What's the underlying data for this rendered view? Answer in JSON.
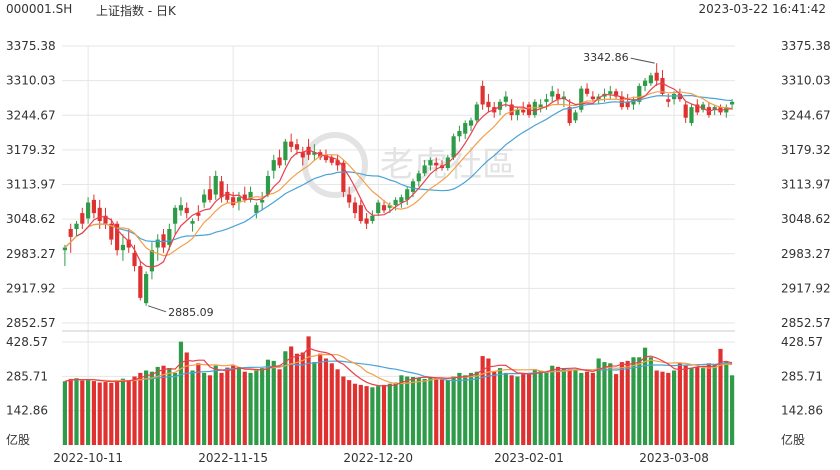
{
  "header": {
    "code": "000001.SH",
    "name": "上证指数 - 日K",
    "datetime": "2023-03-22 16:41:42"
  },
  "watermark": "老虎社區",
  "colors": {
    "up": "#2e9b48",
    "down": "#e03131",
    "ma5": "#e8414b",
    "ma10": "#f3a04a",
    "ma20": "#4aa3d6",
    "grid": "#e6e6e6",
    "text": "#333333"
  },
  "chart_data": [
    {
      "type": "candlestick",
      "title": "上证指数 - 日K",
      "price_ticks": [
        "3375.38",
        "3310.03",
        "3244.67",
        "3179.32",
        "3113.97",
        "3048.62",
        "2983.27",
        "2917.92",
        "2852.57"
      ],
      "ylim": [
        2852.57,
        3375.38
      ],
      "x_ticks": [
        "2022-10-11",
        "2022-11-15",
        "2022-12-20",
        "2023-02-01",
        "2023-03-08"
      ],
      "annotations": [
        {
          "label": "3342.86",
          "type": "high"
        },
        {
          "label": "2885.09",
          "type": "low"
        }
      ],
      "moving_averages": [
        "MA5",
        "MA10",
        "MA20"
      ],
      "candles": [
        {
          "o": 2990,
          "h": 3000,
          "l": 2960,
          "c": 2995
        },
        {
          "o": 3030,
          "h": 3040,
          "l": 2985,
          "c": 3015
        },
        {
          "o": 3030,
          "h": 3045,
          "l": 3015,
          "c": 3040
        },
        {
          "o": 3060,
          "h": 3070,
          "l": 3030,
          "c": 3040
        },
        {
          "o": 3050,
          "h": 3090,
          "l": 3040,
          "c": 3080
        },
        {
          "o": 3085,
          "h": 3095,
          "l": 3050,
          "c": 3060
        },
        {
          "o": 3070,
          "h": 3085,
          "l": 3030,
          "c": 3045
        },
        {
          "o": 3055,
          "h": 3070,
          "l": 3030,
          "c": 3040
        },
        {
          "o": 3040,
          "h": 3050,
          "l": 3000,
          "c": 3010
        },
        {
          "o": 3040,
          "h": 3045,
          "l": 2980,
          "c": 2990
        },
        {
          "o": 2990,
          "h": 3020,
          "l": 2970,
          "c": 3000
        },
        {
          "o": 3010,
          "h": 3030,
          "l": 2985,
          "c": 2995
        },
        {
          "o": 2985,
          "h": 3000,
          "l": 2950,
          "c": 2960
        },
        {
          "o": 2960,
          "h": 2970,
          "l": 2895,
          "c": 2900
        },
        {
          "o": 2890,
          "h": 2950,
          "l": 2885,
          "c": 2945
        },
        {
          "o": 2950,
          "h": 3005,
          "l": 2935,
          "c": 2990
        },
        {
          "o": 2995,
          "h": 3020,
          "l": 2970,
          "c": 3010
        },
        {
          "o": 3020,
          "h": 3030,
          "l": 2985,
          "c": 2995
        },
        {
          "o": 3000,
          "h": 3040,
          "l": 2990,
          "c": 3030
        },
        {
          "o": 3040,
          "h": 3075,
          "l": 3020,
          "c": 3070
        },
        {
          "o": 3065,
          "h": 3090,
          "l": 3055,
          "c": 3075
        },
        {
          "o": 3070,
          "h": 3080,
          "l": 3050,
          "c": 3060
        },
        {
          "o": 3040,
          "h": 3050,
          "l": 3025,
          "c": 3045
        },
        {
          "o": 3060,
          "h": 3075,
          "l": 3045,
          "c": 3055
        },
        {
          "o": 3080,
          "h": 3105,
          "l": 3070,
          "c": 3095
        },
        {
          "o": 3105,
          "h": 3130,
          "l": 3080,
          "c": 3085
        },
        {
          "o": 3095,
          "h": 3140,
          "l": 3085,
          "c": 3130
        },
        {
          "o": 3120,
          "h": 3130,
          "l": 3080,
          "c": 3090
        },
        {
          "o": 3100,
          "h": 3115,
          "l": 3080,
          "c": 3085
        },
        {
          "o": 3090,
          "h": 3100,
          "l": 3070,
          "c": 3075
        },
        {
          "o": 3080,
          "h": 3100,
          "l": 3065,
          "c": 3090
        },
        {
          "o": 3095,
          "h": 3110,
          "l": 3080,
          "c": 3085
        },
        {
          "o": 3085,
          "h": 3110,
          "l": 3080,
          "c": 3100
        },
        {
          "o": 3060,
          "h": 3080,
          "l": 3050,
          "c": 3075
        },
        {
          "o": 3080,
          "h": 3100,
          "l": 3065,
          "c": 3085
        },
        {
          "o": 3095,
          "h": 3140,
          "l": 3090,
          "c": 3130
        },
        {
          "o": 3140,
          "h": 3170,
          "l": 3125,
          "c": 3160
        },
        {
          "o": 3165,
          "h": 3180,
          "l": 3145,
          "c": 3150
        },
        {
          "o": 3160,
          "h": 3200,
          "l": 3150,
          "c": 3195
        },
        {
          "o": 3195,
          "h": 3210,
          "l": 3175,
          "c": 3185
        },
        {
          "o": 3190,
          "h": 3200,
          "l": 3170,
          "c": 3180
        },
        {
          "o": 3175,
          "h": 3185,
          "l": 3150,
          "c": 3165
        },
        {
          "o": 3185,
          "h": 3200,
          "l": 3160,
          "c": 3170
        },
        {
          "o": 3170,
          "h": 3190,
          "l": 3160,
          "c": 3175
        },
        {
          "o": 3175,
          "h": 3180,
          "l": 3160,
          "c": 3165
        },
        {
          "o": 3170,
          "h": 3180,
          "l": 3155,
          "c": 3160
        },
        {
          "o": 3165,
          "h": 3170,
          "l": 3150,
          "c": 3155
        },
        {
          "o": 3160,
          "h": 3170,
          "l": 3140,
          "c": 3150
        },
        {
          "o": 3155,
          "h": 3160,
          "l": 3090,
          "c": 3100
        },
        {
          "o": 3095,
          "h": 3110,
          "l": 3070,
          "c": 3080
        },
        {
          "o": 3080,
          "h": 3090,
          "l": 3050,
          "c": 3060
        },
        {
          "o": 3075,
          "h": 3085,
          "l": 3040,
          "c": 3045
        },
        {
          "o": 3050,
          "h": 3060,
          "l": 3030,
          "c": 3040
        },
        {
          "o": 3045,
          "h": 3065,
          "l": 3040,
          "c": 3055
        },
        {
          "o": 3060,
          "h": 3085,
          "l": 3055,
          "c": 3080
        },
        {
          "o": 3075,
          "h": 3085,
          "l": 3060,
          "c": 3065
        },
        {
          "o": 3070,
          "h": 3080,
          "l": 3060,
          "c": 3075
        },
        {
          "o": 3075,
          "h": 3090,
          "l": 3065,
          "c": 3085
        },
        {
          "o": 3080,
          "h": 3095,
          "l": 3070,
          "c": 3090
        },
        {
          "o": 3085,
          "h": 3110,
          "l": 3075,
          "c": 3105
        },
        {
          "o": 3100,
          "h": 3125,
          "l": 3090,
          "c": 3120
        },
        {
          "o": 3120,
          "h": 3140,
          "l": 3110,
          "c": 3135
        },
        {
          "o": 3135,
          "h": 3160,
          "l": 3130,
          "c": 3150
        },
        {
          "o": 3150,
          "h": 3165,
          "l": 3140,
          "c": 3160
        },
        {
          "o": 3155,
          "h": 3165,
          "l": 3140,
          "c": 3150
        },
        {
          "o": 3150,
          "h": 3160,
          "l": 3140,
          "c": 3145
        },
        {
          "o": 3145,
          "h": 3170,
          "l": 3140,
          "c": 3165
        },
        {
          "o": 3165,
          "h": 3210,
          "l": 3160,
          "c": 3205
        },
        {
          "o": 3205,
          "h": 3225,
          "l": 3195,
          "c": 3215
        },
        {
          "o": 3210,
          "h": 3235,
          "l": 3200,
          "c": 3230
        },
        {
          "o": 3225,
          "h": 3240,
          "l": 3215,
          "c": 3235
        },
        {
          "o": 3235,
          "h": 3270,
          "l": 3230,
          "c": 3265
        },
        {
          "o": 3300,
          "h": 3310,
          "l": 3255,
          "c": 3265
        },
        {
          "o": 3270,
          "h": 3285,
          "l": 3250,
          "c": 3260
        },
        {
          "o": 3260,
          "h": 3270,
          "l": 3240,
          "c": 3250
        },
        {
          "o": 3255,
          "h": 3275,
          "l": 3245,
          "c": 3270
        },
        {
          "o": 3270,
          "h": 3290,
          "l": 3260,
          "c": 3280
        },
        {
          "o": 3265,
          "h": 3275,
          "l": 3235,
          "c": 3245
        },
        {
          "o": 3245,
          "h": 3260,
          "l": 3235,
          "c": 3255
        },
        {
          "o": 3255,
          "h": 3270,
          "l": 3245,
          "c": 3250
        },
        {
          "o": 3265,
          "h": 3270,
          "l": 3240,
          "c": 3245
        },
        {
          "o": 3245,
          "h": 3275,
          "l": 3240,
          "c": 3270
        },
        {
          "o": 3260,
          "h": 3275,
          "l": 3250,
          "c": 3265
        },
        {
          "o": 3270,
          "h": 3285,
          "l": 3255,
          "c": 3275
        },
        {
          "o": 3280,
          "h": 3300,
          "l": 3270,
          "c": 3290
        },
        {
          "o": 3285,
          "h": 3295,
          "l": 3265,
          "c": 3275
        },
        {
          "o": 3275,
          "h": 3290,
          "l": 3260,
          "c": 3280
        },
        {
          "o": 3260,
          "h": 3275,
          "l": 3225,
          "c": 3230
        },
        {
          "o": 3235,
          "h": 3255,
          "l": 3230,
          "c": 3250
        },
        {
          "o": 3255,
          "h": 3300,
          "l": 3250,
          "c": 3295
        },
        {
          "o": 3295,
          "h": 3305,
          "l": 3280,
          "c": 3285
        },
        {
          "o": 3280,
          "h": 3290,
          "l": 3270,
          "c": 3275
        },
        {
          "o": 3275,
          "h": 3285,
          "l": 3265,
          "c": 3280
        },
        {
          "o": 3280,
          "h": 3295,
          "l": 3270,
          "c": 3285
        },
        {
          "o": 3285,
          "h": 3300,
          "l": 3275,
          "c": 3290
        },
        {
          "o": 3290,
          "h": 3295,
          "l": 3275,
          "c": 3280
        },
        {
          "o": 3280,
          "h": 3290,
          "l": 3255,
          "c": 3260
        },
        {
          "o": 3270,
          "h": 3285,
          "l": 3255,
          "c": 3260
        },
        {
          "o": 3265,
          "h": 3280,
          "l": 3255,
          "c": 3275
        },
        {
          "o": 3270,
          "h": 3305,
          "l": 3265,
          "c": 3300
        },
        {
          "o": 3300,
          "h": 3315,
          "l": 3290,
          "c": 3310
        },
        {
          "o": 3305,
          "h": 3325,
          "l": 3300,
          "c": 3320
        },
        {
          "o": 3325,
          "h": 3343,
          "l": 3300,
          "c": 3310
        },
        {
          "o": 3315,
          "h": 3330,
          "l": 3280,
          "c": 3285
        },
        {
          "o": 3275,
          "h": 3285,
          "l": 3260,
          "c": 3270
        },
        {
          "o": 3275,
          "h": 3290,
          "l": 3265,
          "c": 3285
        },
        {
          "o": 3285,
          "h": 3295,
          "l": 3270,
          "c": 3275
        },
        {
          "o": 3265,
          "h": 3270,
          "l": 3230,
          "c": 3240
        },
        {
          "o": 3230,
          "h": 3265,
          "l": 3225,
          "c": 3260
        },
        {
          "o": 3265,
          "h": 3275,
          "l": 3245,
          "c": 3250
        },
        {
          "o": 3255,
          "h": 3270,
          "l": 3250,
          "c": 3265
        },
        {
          "o": 3260,
          "h": 3270,
          "l": 3240,
          "c": 3245
        },
        {
          "o": 3255,
          "h": 3265,
          "l": 3245,
          "c": 3260
        },
        {
          "o": 3260,
          "h": 3265,
          "l": 3245,
          "c": 3250
        },
        {
          "o": 3250,
          "h": 3265,
          "l": 3240,
          "c": 3260
        },
        {
          "o": 3265,
          "h": 3275,
          "l": 3255,
          "c": 3270
        }
      ]
    },
    {
      "type": "bar",
      "title": "",
      "ylabel": "亿股",
      "ticks": [
        "428.57",
        "285.71",
        "142.86",
        "亿股"
      ],
      "ylim": [
        0,
        428.57
      ],
      "moving_averages": [
        "MA5",
        "MA10",
        "MA20"
      ],
      "volumes": [
        265,
        275,
        278,
        268,
        272,
        266,
        260,
        262,
        258,
        270,
        276,
        268,
        285,
        300,
        310,
        305,
        325,
        330,
        320,
        300,
        430,
        385,
        310,
        340,
        300,
        290,
        330,
        300,
        322,
        330,
        325,
        305,
        300,
        310,
        320,
        355,
        350,
        315,
        390,
        410,
        380,
        385,
        452,
        345,
        380,
        360,
        340,
        315,
        285,
        270,
        255,
        250,
        245,
        240,
        245,
        250,
        255,
        260,
        290,
        285,
        283,
        280,
        275,
        283,
        280,
        277,
        270,
        285,
        300,
        290,
        300,
        305,
        370,
        360,
        305,
        320,
        300,
        290,
        285,
        295,
        300,
        315,
        310,
        305,
        330,
        325,
        320,
        315,
        310,
        300,
        305,
        300,
        360,
        345,
        340,
        295,
        345,
        350,
        365,
        365,
        405,
        365,
        310,
        305,
        300,
        310,
        340,
        330,
        320,
        325,
        320,
        340,
        335,
        400,
        345,
        290
      ]
    }
  ]
}
